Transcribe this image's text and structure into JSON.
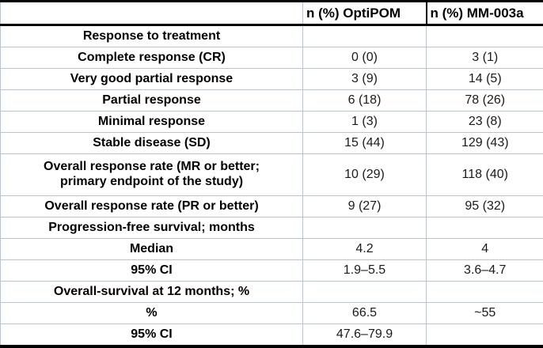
{
  "header": {
    "col_label": "",
    "col_optipom": "n (%) OptiPOM",
    "col_mm003a": "n (%) MM-003a"
  },
  "rows": [
    {
      "label": "Response to treatment",
      "optipom": "",
      "mm003a": ""
    },
    {
      "label": "Complete response (CR)",
      "optipom": "0 (0)",
      "mm003a": "3 (1)"
    },
    {
      "label": "Very good partial response",
      "optipom": "3 (9)",
      "mm003a": "14 (5)"
    },
    {
      "label": "Partial response",
      "optipom": "6 (18)",
      "mm003a": "78 (26)"
    },
    {
      "label": "Minimal response",
      "optipom": "1 (3)",
      "mm003a": "23 (8)"
    },
    {
      "label": "Stable disease (SD)",
      "optipom": "15 (44)",
      "mm003a": "129 (43)"
    },
    {
      "label": "Overall response rate (MR or better;\nprimary endpoint of the study)",
      "optipom": "10 (29)",
      "mm003a": "118 (40)"
    },
    {
      "label": "Overall response rate (PR or better)",
      "optipom": "9 (27)",
      "mm003a": "95 (32)"
    },
    {
      "label": "Progression-free survival; months",
      "optipom": "",
      "mm003a": ""
    },
    {
      "label": "Median",
      "optipom": "4.2",
      "mm003a": "4"
    },
    {
      "label": "95% CI",
      "optipom": "1.9–5.5",
      "mm003a": "3.6–4.7"
    },
    {
      "label": "Overall-survival at 12 months; %",
      "optipom": "",
      "mm003a": ""
    },
    {
      "label": "%",
      "optipom": "66.5",
      "mm003a": "~55"
    },
    {
      "label": "95% CI",
      "optipom": "47.6–79.9",
      "mm003a": ""
    }
  ],
  "colors": {
    "grid_line": "#b9c4ce",
    "heavy_border": "#000000",
    "label_text": "#000000",
    "value_text": "#1a1a1a"
  }
}
